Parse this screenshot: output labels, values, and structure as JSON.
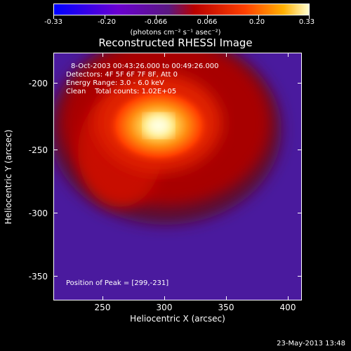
{
  "colorbar": {
    "ticks": [
      "-0.33",
      "-0.20",
      "-0.066",
      "0.066",
      "0.20",
      "0.33"
    ],
    "units": "(photons cm⁻² s⁻¹ asec⁻²)"
  },
  "title": "Reconstructed RHESSI Image",
  "annotations": {
    "time": "8-Oct-2003 00:43:26.000 to 00:49:26.000",
    "detectors": "Detectors: 4F 5F 6F 7F 8F, Att 0",
    "energy": "Energy Range: 3.0 - 6.0 keV",
    "clean": "Clean    Total counts: 1.02E+05",
    "peak": "Position of Peak = [299,-231]"
  },
  "x_axis": {
    "title": "Heliocentric X (arcsec)",
    "ticks": [
      "250",
      "300",
      "350",
      "400"
    ]
  },
  "y_axis": {
    "title": "Heliocentric Y (arcsec)",
    "ticks": [
      "-200",
      "-250",
      "-300",
      "-350"
    ]
  },
  "footer": "23-May-2013 13:48"
}
